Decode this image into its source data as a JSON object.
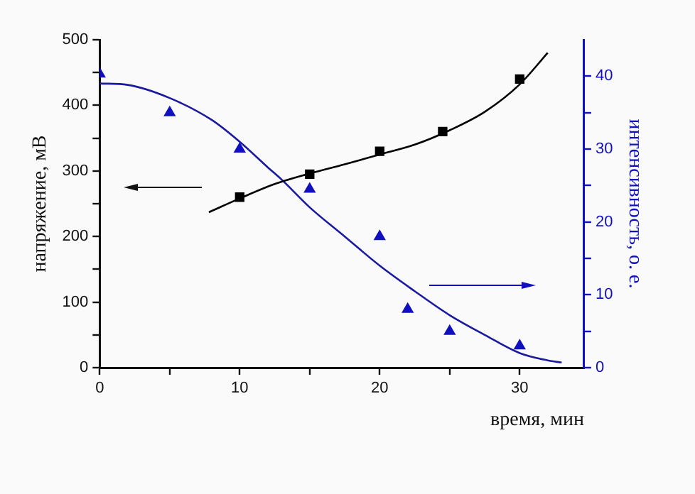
{
  "chart_data": {
    "type": "scatter",
    "xlabel": "время, мин",
    "ylabel": "напряжение, мВ",
    "y2label": "интенсивность, о. е.",
    "xlim": [
      0,
      34.6
    ],
    "xticks": [
      0,
      {
        "value": 5,
        "label": null
      },
      10,
      {
        "value": 15,
        "label": null
      },
      20,
      {
        "value": 25,
        "label": null
      },
      30
    ],
    "ylim": [
      0,
      500
    ],
    "yticks": [
      0,
      {
        "value": 50,
        "label": null
      },
      100,
      {
        "value": 150,
        "label": null
      },
      200,
      {
        "value": 250,
        "label": null
      },
      300,
      {
        "value": 350,
        "label": null
      },
      400,
      {
        "value": 450,
        "label": null
      },
      500
    ],
    "y2lim": [
      0,
      45
    ],
    "y2ticks": [
      0,
      {
        "value": 5,
        "label": null
      },
      10,
      {
        "value": 15,
        "label": null
      },
      20,
      {
        "value": 25,
        "label": null
      },
      30,
      {
        "value": 35,
        "label": null
      },
      40
    ],
    "grid": false,
    "legend": false,
    "series": [
      {
        "marker": "square",
        "color": "#000000",
        "x": [
          10,
          15,
          20,
          24.5,
          30
        ],
        "values": [
          260,
          295,
          330,
          360,
          440
        ]
      },
      {
        "type": "line",
        "marker": "none",
        "color": "#000000",
        "x": [
          7.8,
          10,
          12.5,
          15,
          17.5,
          20,
          22.5,
          25,
          27.5,
          30,
          32
        ],
        "values": [
          237,
          258,
          280,
          296,
          310,
          325,
          340,
          362,
          390,
          432,
          480
        ]
      },
      {
        "marker": "triangle",
        "axis": "y2",
        "color": "#1010c0",
        "x": [
          0,
          5,
          10,
          15,
          20,
          22,
          25,
          30
        ],
        "values": [
          40.3,
          35,
          30,
          24.5,
          18,
          8,
          5,
          3
        ]
      },
      {
        "type": "line",
        "marker": "none",
        "axis": "y2",
        "color": "#1a1aa0",
        "x": [
          0,
          2,
          5,
          8,
          10,
          12,
          13,
          15,
          17.5,
          20,
          22.5,
          25,
          27.5,
          30,
          32,
          33
        ],
        "values": [
          39,
          38.8,
          37,
          34,
          31,
          27.5,
          25.8,
          22,
          18,
          14,
          10.5,
          7.2,
          4.5,
          2,
          1,
          0.7
        ]
      }
    ]
  }
}
